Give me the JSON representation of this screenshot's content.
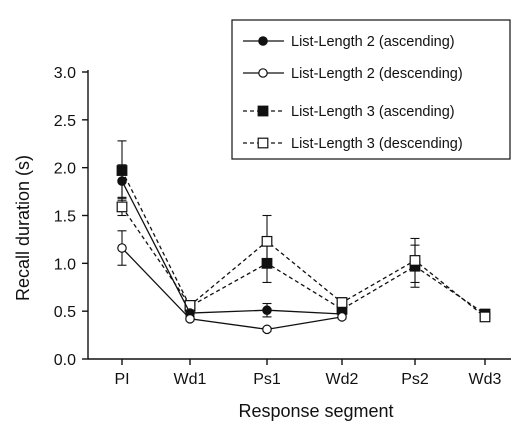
{
  "chart_data": {
    "type": "line",
    "title": "",
    "xlabel": "Response segment",
    "ylabel": "Recall duration (s)",
    "categories": [
      "PI",
      "Wd1",
      "Ps1",
      "Wd2",
      "Ps2",
      "Wd3"
    ],
    "ylim": [
      0.0,
      3.0
    ],
    "yticks": [
      "0.0",
      "0.5",
      "1.0",
      "1.5",
      "2.0",
      "2.5",
      "3.0"
    ],
    "grid": false,
    "legend_position": "top-right",
    "series": [
      {
        "name": "List-Length 2 (ascending)",
        "line": "solid",
        "marker": "circle-filled",
        "values": [
          1.86,
          0.48,
          0.51,
          0.47,
          null,
          null
        ],
        "error": [
          0.17,
          0.03,
          0.07,
          0.03,
          null,
          null
        ]
      },
      {
        "name": "List-Length 2 (descending)",
        "line": "solid",
        "marker": "circle-open",
        "values": [
          1.16,
          0.42,
          0.31,
          0.44,
          null,
          null
        ],
        "error": [
          0.18,
          0.02,
          0.02,
          0.02,
          null,
          null
        ]
      },
      {
        "name": "List-Length 3 (ascending)",
        "line": "dashed",
        "marker": "square-filled",
        "values": [
          1.97,
          0.55,
          1.0,
          0.52,
          0.97,
          0.47
        ],
        "error": [
          0.31,
          0.05,
          0.2,
          0.05,
          0.22,
          0.02
        ]
      },
      {
        "name": "List-Length 3 (descending)",
        "line": "dashed",
        "marker": "square-open",
        "values": [
          1.59,
          0.56,
          1.23,
          0.59,
          1.03,
          0.44
        ],
        "error": [
          0.09,
          0.05,
          0.27,
          0.05,
          0.23,
          0.02
        ]
      }
    ]
  }
}
